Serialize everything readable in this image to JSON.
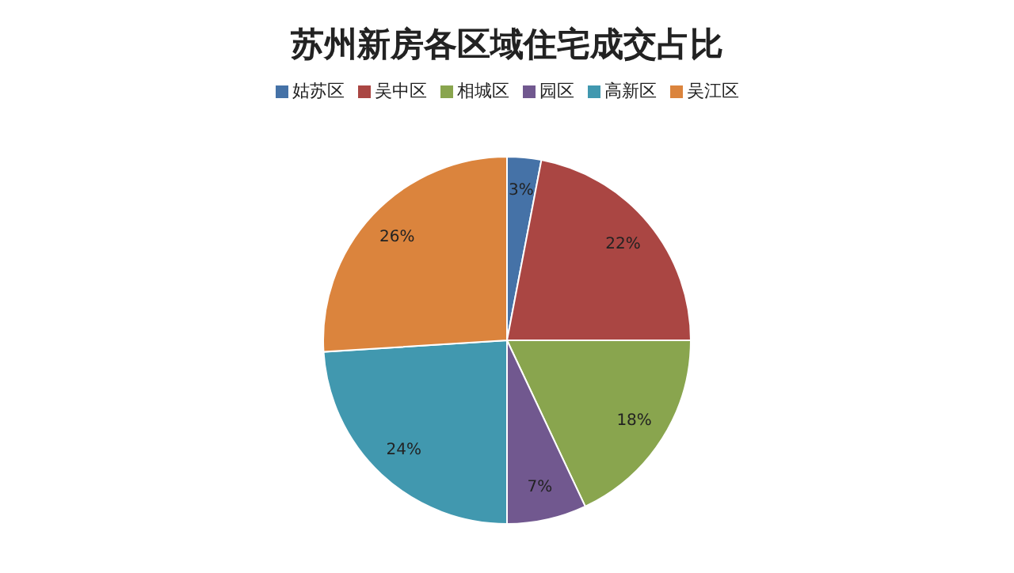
{
  "chart_data": {
    "type": "pie",
    "title": "苏州新房各区域住宅成交占比",
    "categories": [
      "姑苏区",
      "吴中区",
      "相城区",
      "园区",
      "高新区",
      "吴江区"
    ],
    "values": [
      3,
      22,
      18,
      7,
      24,
      26
    ],
    "colors": [
      "#4572a7",
      "#aa4643",
      "#89a54e",
      "#71588f",
      "#4198af",
      "#db843d"
    ],
    "value_labels": [
      "3%",
      "22%",
      "18%",
      "7%",
      "24%",
      "26%"
    ],
    "legend": "top"
  }
}
